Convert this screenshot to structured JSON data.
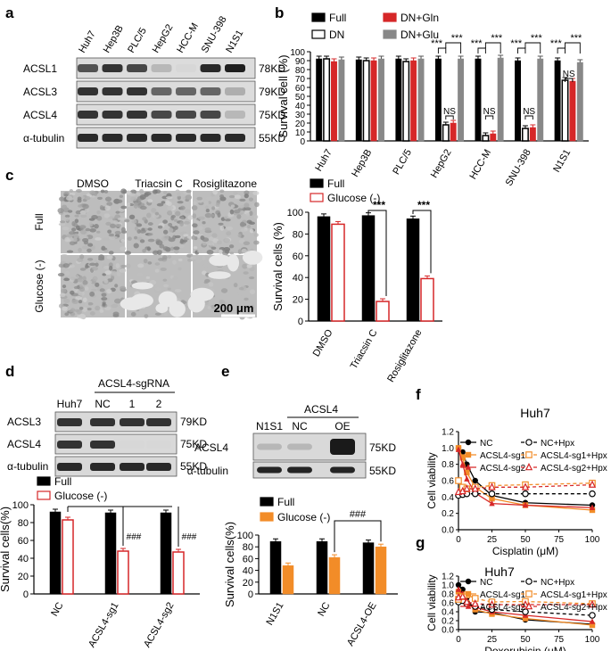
{
  "panels": {
    "a": {
      "letter": "a",
      "lanes": [
        "Huh7",
        "Hep3B",
        "PLC/5",
        "HepG2",
        "HCC-M",
        "SNU-398",
        "N1S1"
      ],
      "rows": [
        {
          "name": "ACSL1",
          "kd": "78KD",
          "intensity": [
            0.7,
            0.85,
            0.75,
            0.2,
            0.05,
            0.9,
            0.95
          ]
        },
        {
          "name": "ACSL3",
          "kd": "79KD",
          "intensity": [
            0.85,
            0.85,
            0.85,
            0.6,
            0.6,
            0.6,
            0.25
          ]
        },
        {
          "name": "ACSL4",
          "kd": "75KD",
          "intensity": [
            0.85,
            0.85,
            0.85,
            0.75,
            0.75,
            0.75,
            0.2
          ]
        },
        {
          "name": "α-tubulin",
          "kd": "55KD",
          "intensity": [
            0.9,
            0.9,
            0.9,
            0.9,
            0.9,
            0.9,
            0.9
          ]
        }
      ]
    },
    "b": {
      "letter": "b"
    },
    "c": {
      "letter": "c",
      "img_cols": [
        "DMSO",
        "Triacsin C",
        "Rosiglitazone"
      ],
      "img_rows": [
        "Full",
        "Glucose (-)"
      ],
      "scale_bar": "200 μm"
    },
    "d": {
      "letter": "d",
      "header": "ACSL4-sgRNA",
      "lanes": [
        "Huh7",
        "NC",
        "1",
        "2"
      ],
      "rows": [
        {
          "name": "ACSL3",
          "kd": "79KD",
          "intensity": [
            0.85,
            0.85,
            0.85,
            0.85
          ]
        },
        {
          "name": "ACSL4",
          "kd": "75KD",
          "intensity": [
            0.85,
            0.85,
            0.05,
            0.05
          ]
        },
        {
          "name": "α-tubulin",
          "kd": "55KD",
          "intensity": [
            0.9,
            0.9,
            0.9,
            0.9
          ]
        }
      ]
    },
    "e": {
      "letter": "e",
      "header": "ACSL4",
      "lanes": [
        "N1S1",
        "NC",
        "OE"
      ],
      "rows": [
        {
          "name": "ACSL4",
          "kd": "75KD",
          "intensity": [
            0.2,
            0.2,
            0.95
          ]
        },
        {
          "name": "α-tubulin",
          "kd": "55KD",
          "intensity": [
            0.9,
            0.9,
            0.9
          ]
        }
      ]
    },
    "f": {
      "letter": "f"
    },
    "g": {
      "letter": "g"
    }
  },
  "chart_data": [
    {
      "id": "b",
      "type": "bar",
      "ylabel": "Survival cell (%)",
      "ylim": [
        0,
        100
      ],
      "yticks": [
        "0",
        "10",
        "20",
        "30",
        "40",
        "50",
        "60",
        "70",
        "80",
        "90",
        "100"
      ],
      "categories": [
        "Huh7",
        "Hep3B",
        "PLC/5",
        "HepG2",
        "HCC-M",
        "SNU-398",
        "N1S1"
      ],
      "series": [
        {
          "name": "Full",
          "color": "#000000",
          "fill": "solid",
          "values": [
            92,
            91,
            92,
            92,
            92,
            90,
            90
          ]
        },
        {
          "name": "DN",
          "color": "#000000",
          "fill": "open",
          "values": [
            92,
            90,
            89,
            18,
            6,
            14,
            68
          ]
        },
        {
          "name": "DN+Gln",
          "color": "#d62728",
          "fill": "solid",
          "values": [
            89,
            90,
            90,
            20,
            8,
            15,
            67
          ]
        },
        {
          "name": "DN+Glu",
          "color": "#888888",
          "fill": "solid",
          "values": [
            91,
            92,
            92,
            92,
            93,
            92,
            88
          ]
        }
      ],
      "annotations": [
        "***",
        "***",
        "NS"
      ]
    },
    {
      "id": "c",
      "type": "bar",
      "ylabel": "Survival cells (%)",
      "ylim": [
        0,
        100
      ],
      "yticks": [
        "0",
        "20",
        "40",
        "60",
        "80",
        "100"
      ],
      "categories": [
        "DMSO",
        "Triacsin C",
        "Rosiglitazone"
      ],
      "series": [
        {
          "name": "Full",
          "color": "#000000",
          "fill": "solid",
          "values": [
            96,
            97,
            94
          ]
        },
        {
          "name": "Glucose (-)",
          "color": "#d62728",
          "fill": "open",
          "values": [
            89,
            18,
            39
          ]
        }
      ],
      "annotations": [
        "***"
      ]
    },
    {
      "id": "d",
      "type": "bar",
      "ylabel": "Survival cells(%)",
      "ylim": [
        0,
        100
      ],
      "yticks": [
        "0",
        "20",
        "40",
        "60",
        "80",
        "100"
      ],
      "categories": [
        "NC",
        "ACSL4-sg1",
        "ACSL4-sg2"
      ],
      "series": [
        {
          "name": "Full",
          "color": "#000000",
          "fill": "solid",
          "values": [
            92,
            91,
            91
          ]
        },
        {
          "name": "Glucose (-)",
          "color": "#d62728",
          "fill": "open",
          "values": [
            83,
            48,
            47
          ]
        }
      ],
      "annotations": [
        "###"
      ]
    },
    {
      "id": "e",
      "type": "bar",
      "ylabel": "Survival cells(%)",
      "ylim": [
        0,
        100
      ],
      "yticks": [
        "0",
        "20",
        "40",
        "60",
        "80",
        "100"
      ],
      "categories": [
        "N1S1",
        "NC",
        "ACSL4-OE"
      ],
      "series": [
        {
          "name": "Full",
          "color": "#000000",
          "fill": "solid",
          "values": [
            89,
            89,
            87
          ]
        },
        {
          "name": "Glucose (-)",
          "color": "#f28c28",
          "fill": "solid",
          "values": [
            48,
            62,
            80
          ]
        }
      ],
      "annotations": [
        "###"
      ]
    },
    {
      "id": "f",
      "type": "line",
      "title": "Huh7",
      "xlabel": "Cisplatin (μM)",
      "ylabel": "Cell viability",
      "xlim": [
        0,
        100
      ],
      "ylim": [
        0,
        1.2
      ],
      "xticks": [
        "0",
        "25",
        "50",
        "75",
        "100"
      ],
      "yticks": [
        "0.0",
        "0.2",
        "0.4",
        "0.6",
        "0.8",
        "1.0",
        "1.2"
      ],
      "x": [
        0,
        3.125,
        6.25,
        12.5,
        25,
        50,
        100
      ],
      "series": [
        {
          "name": "NC",
          "color": "#000000",
          "dash": false,
          "marker": "dot",
          "values": [
            1.0,
            0.95,
            0.8,
            0.6,
            0.42,
            0.33,
            0.3
          ]
        },
        {
          "name": "ACSL4-sg1",
          "color": "#f28c28",
          "dash": false,
          "marker": "square",
          "values": [
            1.0,
            0.88,
            0.7,
            0.52,
            0.38,
            0.3,
            0.24
          ]
        },
        {
          "name": "ACSL4-sg2",
          "color": "#d62728",
          "dash": false,
          "marker": "triangle",
          "values": [
            0.98,
            0.8,
            0.62,
            0.45,
            0.32,
            0.3,
            0.27
          ]
        },
        {
          "name": "NC+Hpx",
          "color": "#000000",
          "dash": true,
          "marker": "circle",
          "values": [
            0.42,
            0.43,
            0.44,
            0.44,
            0.44,
            0.44,
            0.44
          ]
        },
        {
          "name": "ACSL4-sg1+Hpx",
          "color": "#f28c28",
          "dash": true,
          "marker": "square-open",
          "values": [
            0.6,
            0.52,
            0.5,
            0.52,
            0.54,
            0.55,
            0.57
          ]
        },
        {
          "name": "ACSL4-sg2+Hpx",
          "color": "#d62728",
          "dash": true,
          "marker": "triangle-open",
          "values": [
            0.46,
            0.47,
            0.5,
            0.5,
            0.52,
            0.52,
            0.55
          ]
        }
      ]
    },
    {
      "id": "g",
      "type": "line",
      "title": "Huh7",
      "xlabel": "Doxorubicin (μM)",
      "ylabel": "Cell viability",
      "xlim": [
        0,
        100
      ],
      "ylim": [
        0,
        1.2
      ],
      "xticks": [
        "0",
        "25",
        "50",
        "75",
        "100"
      ],
      "yticks": [
        "0.0",
        "0.2",
        "0.4",
        "0.6",
        "0.8",
        "1.0",
        "1.2"
      ],
      "x": [
        0,
        3.125,
        6.25,
        12.5,
        25,
        50,
        100
      ],
      "series": [
        {
          "name": "NC",
          "color": "#000000",
          "dash": false,
          "marker": "dot",
          "values": [
            1.0,
            0.9,
            0.72,
            0.4,
            0.38,
            0.22,
            0.12
          ]
        },
        {
          "name": "ACSL4-sg1",
          "color": "#f28c28",
          "dash": false,
          "marker": "square",
          "values": [
            0.85,
            0.75,
            0.6,
            0.45,
            0.35,
            0.25,
            0.1
          ]
        },
        {
          "name": "ACSL4-sg2",
          "color": "#d62728",
          "dash": false,
          "marker": "triangle",
          "values": [
            0.9,
            0.8,
            0.62,
            0.5,
            0.4,
            0.32,
            0.18
          ]
        },
        {
          "name": "NC+Hpx",
          "color": "#000000",
          "dash": true,
          "marker": "circle",
          "values": [
            0.62,
            0.65,
            0.58,
            0.52,
            0.45,
            0.4,
            0.32
          ]
        },
        {
          "name": "ACSL4-sg1+Hpx",
          "color": "#f28c28",
          "dash": true,
          "marker": "square-open",
          "values": [
            0.68,
            0.74,
            0.78,
            0.7,
            0.62,
            0.63,
            0.58
          ]
        },
        {
          "name": "ACSL4-sg2+Hpx",
          "color": "#d62728",
          "dash": true,
          "marker": "triangle-open",
          "values": [
            0.72,
            0.74,
            0.62,
            0.58,
            0.56,
            0.56,
            0.56
          ]
        }
      ]
    }
  ]
}
